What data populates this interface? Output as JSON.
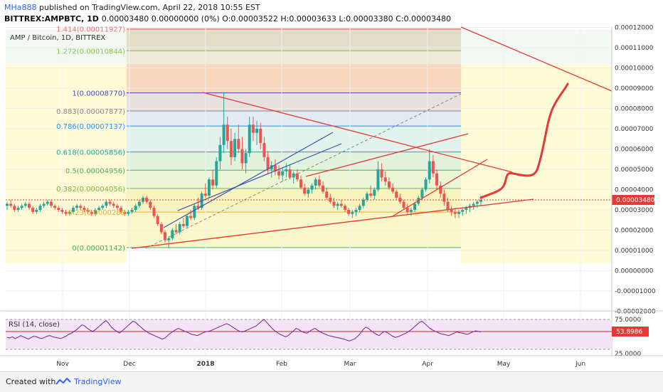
{
  "header": {
    "publisher": "MHa888",
    "published_text": "published on TradingView.com, April 22, 2018 10:55 EST",
    "symbol": "BITTREX:AMPBTC, 1D",
    "ohlc": "0.00003480 0.00000000 (0%) O:0.00003522 H:0.00003633 L:0.00003380 C:0.00003480"
  },
  "footer": {
    "created_with": "Created with",
    "brand": "TradingView"
  },
  "chart_data": {
    "type": "candlestick",
    "title": "AMP / Bitcoin, 1D, BITTREX",
    "last_price": "0.00003480",
    "y_ticks": [
      "0.00012000",
      "0.00011000",
      "0.00010000",
      "0.00009000",
      "0.00008000",
      "0.00007000",
      "0.00006000",
      "0.00005000",
      "0.00004000",
      "0.00003000",
      "0.00002000",
      "0.00001000",
      "0.00000000",
      "-0.00001000",
      "-0.00002000"
    ],
    "x_ticks": [
      "Nov",
      "Dec",
      "2018",
      "Feb",
      "Mar",
      "Apr",
      "May",
      "Jun"
    ],
    "fib_levels": [
      {
        "label": "1.414(0.00011927)",
        "value": 0.00011927,
        "color": "#e57373"
      },
      {
        "label": "1.272(0.00010844)",
        "value": 0.00010844,
        "color": "#8bc34a"
      },
      {
        "label": "1(0.00008770)",
        "value": 8.77e-05,
        "color": "#3f51b5"
      },
      {
        "label": "0.883(0.00007877)",
        "value": 7.877e-05,
        "color": "#888888"
      },
      {
        "label": "0.786(0.00007137)",
        "value": 7.137e-05,
        "color": "#2196f3"
      },
      {
        "label": "0.618(0.00005856)",
        "value": 5.856e-05,
        "color": "#26a69a"
      },
      {
        "label": "0.5(0.00004956)",
        "value": 4.956e-05,
        "color": "#4caf50"
      },
      {
        "label": "0.382(0.00004056)",
        "value": 4.056e-05,
        "color": "#7cb342"
      },
      {
        "label": "0.23(0.00002891)",
        "value": 2.891e-05,
        "color": "#f9a825"
      },
      {
        "label": "0(0.00001142)",
        "value": 1.142e-05,
        "color": "#4caf50"
      }
    ],
    "fib_display_levels": [
      "1.414(0.00011927)",
      "1.272(0.00010844)",
      "1(0.00008770)",
      "0.883(0.00007877)",
      "0.786(0.00007137)",
      "0.618(0.00005856)",
      "0.5(0.00004956)",
      "0.382(0.00004056)",
      "0.23(0.0000289",
      "0(0.00001142)"
    ],
    "rsi": {
      "label": "RSI (14, close)",
      "value": "53.8986",
      "y_ticks": [
        "75.0000",
        "25.0000"
      ],
      "values": [
        45,
        44,
        46,
        43,
        45,
        48,
        46,
        44,
        42,
        45,
        47,
        46,
        44,
        43,
        45,
        47,
        48,
        46,
        45,
        44,
        43,
        45,
        47,
        50,
        52,
        55,
        58,
        62,
        66,
        64,
        60,
        57,
        55,
        58,
        62,
        66,
        70,
        73,
        68,
        62,
        58,
        55,
        52,
        56,
        60,
        64,
        68,
        72,
        70,
        66,
        62,
        58,
        55,
        52,
        50,
        48,
        46,
        44,
        42,
        44,
        48,
        52,
        55,
        58,
        60,
        58,
        56,
        54,
        52,
        50,
        49,
        48,
        50,
        52,
        54,
        55,
        56,
        58,
        60,
        62,
        64,
        66,
        68,
        66,
        63,
        60,
        57,
        55,
        54,
        56,
        58,
        60,
        62,
        64,
        68,
        72,
        75,
        70,
        65,
        60,
        56,
        53,
        50,
        48,
        46,
        48,
        52,
        56,
        60,
        58,
        55,
        53,
        52,
        55,
        58,
        60,
        57,
        54,
        52,
        50,
        48,
        47,
        46,
        45,
        44,
        43,
        42,
        40,
        39,
        41,
        43,
        47,
        52,
        58,
        62,
        60,
        56,
        53,
        50,
        48,
        52,
        55,
        53,
        50,
        47,
        45,
        46,
        48,
        50,
        52,
        55,
        58,
        62,
        66,
        70,
        72,
        68,
        64,
        60,
        57,
        55,
        53,
        51,
        50,
        49,
        48,
        50,
        52,
        54,
        53,
        52,
        51,
        50,
        52,
        54,
        56,
        55,
        54
      ]
    },
    "candles": [
      [
        3.2,
        3.4,
        3.0,
        3.3
      ],
      [
        3.3,
        3.5,
        3.1,
        3.2
      ],
      [
        3.2,
        3.3,
        2.9,
        3.0
      ],
      [
        3.0,
        3.2,
        2.9,
        3.1
      ],
      [
        3.1,
        3.3,
        3.0,
        3.2
      ],
      [
        3.2,
        3.4,
        3.1,
        3.3
      ],
      [
        3.3,
        3.4,
        3.0,
        3.1
      ],
      [
        3.1,
        3.2,
        2.8,
        2.9
      ],
      [
        2.9,
        3.1,
        2.8,
        3.0
      ],
      [
        3.0,
        3.3,
        2.9,
        3.2
      ],
      [
        3.2,
        3.4,
        3.1,
        3.3
      ],
      [
        3.3,
        3.5,
        3.2,
        3.4
      ],
      [
        3.4,
        3.5,
        3.1,
        3.2
      ],
      [
        3.2,
        3.3,
        3.0,
        3.1
      ],
      [
        3.1,
        3.2,
        2.9,
        3.0
      ],
      [
        3.0,
        3.1,
        2.8,
        2.9
      ],
      [
        2.9,
        3.0,
        2.7,
        2.8
      ],
      [
        2.8,
        3.0,
        2.7,
        2.9
      ],
      [
        2.9,
        3.2,
        2.8,
        3.1
      ],
      [
        3.1,
        3.3,
        3.0,
        3.2
      ],
      [
        3.2,
        3.3,
        3.0,
        3.1
      ],
      [
        3.1,
        3.2,
        2.9,
        3.0
      ],
      [
        3.0,
        3.1,
        2.8,
        2.9
      ],
      [
        2.9,
        3.0,
        2.7,
        2.8
      ],
      [
        2.8,
        3.1,
        2.7,
        3.0
      ],
      [
        3.0,
        3.2,
        2.9,
        3.1
      ],
      [
        3.1,
        3.3,
        3.0,
        3.2
      ],
      [
        3.2,
        3.5,
        3.1,
        3.4
      ],
      [
        3.4,
        3.5,
        3.2,
        3.3
      ],
      [
        3.3,
        3.4,
        3.1,
        3.2
      ],
      [
        3.2,
        3.3,
        3.0,
        3.1
      ],
      [
        3.1,
        3.2,
        2.8,
        2.9
      ],
      [
        2.9,
        3.0,
        2.7,
        2.8
      ],
      [
        2.8,
        3.0,
        2.7,
        2.9
      ],
      [
        2.9,
        3.1,
        2.8,
        3.0
      ],
      [
        3.0,
        3.3,
        2.9,
        3.2
      ],
      [
        3.2,
        3.5,
        3.1,
        3.4
      ],
      [
        3.4,
        3.7,
        3.3,
        3.6
      ],
      [
        3.6,
        3.7,
        3.3,
        3.4
      ],
      [
        3.4,
        3.5,
        3.0,
        3.1
      ],
      [
        3.1,
        3.2,
        2.6,
        2.7
      ],
      [
        2.7,
        2.8,
        2.2,
        2.3
      ],
      [
        2.3,
        2.4,
        1.8,
        1.9
      ],
      [
        1.9,
        2.0,
        1.4,
        1.5
      ],
      [
        1.5,
        1.7,
        1.1,
        1.6
      ],
      [
        1.6,
        2.1,
        1.5,
        2.0
      ],
      [
        2.0,
        2.3,
        1.8,
        1.9
      ],
      [
        1.9,
        2.4,
        1.8,
        2.3
      ],
      [
        2.3,
        2.6,
        2.1,
        2.2
      ],
      [
        2.2,
        2.8,
        2.1,
        2.7
      ],
      [
        2.7,
        3.0,
        2.5,
        2.6
      ],
      [
        2.6,
        3.3,
        2.5,
        3.2
      ],
      [
        3.2,
        3.6,
        3.0,
        3.1
      ],
      [
        3.1,
        3.9,
        3.0,
        3.8
      ],
      [
        3.8,
        4.3,
        3.6,
        3.7
      ],
      [
        3.7,
        4.6,
        3.6,
        4.5
      ],
      [
        4.5,
        5.0,
        4.0,
        4.2
      ],
      [
        4.2,
        5.6,
        4.1,
        5.4
      ],
      [
        5.4,
        6.6,
        5.0,
        6.2
      ],
      [
        6.2,
        8.8,
        5.8,
        7.2
      ],
      [
        7.2,
        7.6,
        6.0,
        6.4
      ],
      [
        6.4,
        7.0,
        5.2,
        5.6
      ],
      [
        5.6,
        6.8,
        5.4,
        6.5
      ],
      [
        6.5,
        7.2,
        5.8,
        6.0
      ],
      [
        6.0,
        6.6,
        5.0,
        5.3
      ],
      [
        5.3,
        6.0,
        4.8,
        5.8
      ],
      [
        5.8,
        7.6,
        5.6,
        7.2
      ],
      [
        7.2,
        7.6,
        6.4,
        6.8
      ],
      [
        6.8,
        7.4,
        6.2,
        7.0
      ],
      [
        7.0,
        7.3,
        6.0,
        6.3
      ],
      [
        6.3,
        6.6,
        5.4,
        5.6
      ],
      [
        5.6,
        5.9,
        4.8,
        5.0
      ],
      [
        5.0,
        5.4,
        4.6,
        5.2
      ],
      [
        5.2,
        5.5,
        4.7,
        4.9
      ],
      [
        4.9,
        5.2,
        4.5,
        4.7
      ],
      [
        4.7,
        5.1,
        4.4,
        4.9
      ],
      [
        4.9,
        5.3,
        4.6,
        5.0
      ],
      [
        5.0,
        5.2,
        4.5,
        4.6
      ],
      [
        4.6,
        4.9,
        4.3,
        4.8
      ],
      [
        4.8,
        5.0,
        4.4,
        4.5
      ],
      [
        4.5,
        4.7,
        4.0,
        4.1
      ],
      [
        4.1,
        4.3,
        3.7,
        3.8
      ],
      [
        3.8,
        4.1,
        3.6,
        4.0
      ],
      [
        4.0,
        4.3,
        3.8,
        4.2
      ],
      [
        4.2,
        4.6,
        4.0,
        4.5
      ],
      [
        4.5,
        4.7,
        4.1,
        4.2
      ],
      [
        4.2,
        4.4,
        3.8,
        3.9
      ],
      [
        3.9,
        4.1,
        3.5,
        3.6
      ],
      [
        3.6,
        3.8,
        3.3,
        3.4
      ],
      [
        3.4,
        3.6,
        3.1,
        3.2
      ],
      [
        3.2,
        3.4,
        3.0,
        3.3
      ],
      [
        3.3,
        3.5,
        3.1,
        3.2
      ],
      [
        3.2,
        3.3,
        2.9,
        3.0
      ],
      [
        3.0,
        3.1,
        2.7,
        2.8
      ],
      [
        2.8,
        3.0,
        2.6,
        2.9
      ],
      [
        2.9,
        3.1,
        2.7,
        3.0
      ],
      [
        3.0,
        3.3,
        2.9,
        3.2
      ],
      [
        3.2,
        3.6,
        3.1,
        3.5
      ],
      [
        3.5,
        3.9,
        3.4,
        3.8
      ],
      [
        3.8,
        4.2,
        3.6,
        3.7
      ],
      [
        3.7,
        4.1,
        3.5,
        4.0
      ],
      [
        4.0,
        5.4,
        3.9,
        5.0
      ],
      [
        5.0,
        5.3,
        4.4,
        4.6
      ],
      [
        4.6,
        4.9,
        4.2,
        4.4
      ],
      [
        4.4,
        4.6,
        4.0,
        4.1
      ],
      [
        4.1,
        4.3,
        3.8,
        3.9
      ],
      [
        3.9,
        4.0,
        3.5,
        3.6
      ],
      [
        3.6,
        3.8,
        3.3,
        3.4
      ],
      [
        3.4,
        3.5,
        3.0,
        3.1
      ],
      [
        3.1,
        3.3,
        2.8,
        2.9
      ],
      [
        2.9,
        3.1,
        2.7,
        3.0
      ],
      [
        3.0,
        3.4,
        2.9,
        3.3
      ],
      [
        3.3,
        3.7,
        3.2,
        3.6
      ],
      [
        3.6,
        4.1,
        3.5,
        4.0
      ],
      [
        4.0,
        4.6,
        3.9,
        4.5
      ],
      [
        4.5,
        6.0,
        4.3,
        5.4
      ],
      [
        5.4,
        5.7,
        4.6,
        4.8
      ],
      [
        4.8,
        5.0,
        4.0,
        4.2
      ],
      [
        4.2,
        4.4,
        3.6,
        3.8
      ],
      [
        3.8,
        4.0,
        3.2,
        3.4
      ],
      [
        3.4,
        3.6,
        2.9,
        3.0
      ],
      [
        3.0,
        3.2,
        2.7,
        2.9
      ],
      [
        2.9,
        3.1,
        2.6,
        2.8
      ],
      [
        2.8,
        3.0,
        2.6,
        2.9
      ],
      [
        2.9,
        3.1,
        2.7,
        3.0
      ],
      [
        3.0,
        3.2,
        2.8,
        3.1
      ],
      [
        3.1,
        3.3,
        2.9,
        3.2
      ],
      [
        3.2,
        3.4,
        3.0,
        3.3
      ],
      [
        3.3,
        3.5,
        3.1,
        3.4
      ],
      [
        3.4,
        3.7,
        3.2,
        3.5
      ]
    ]
  }
}
